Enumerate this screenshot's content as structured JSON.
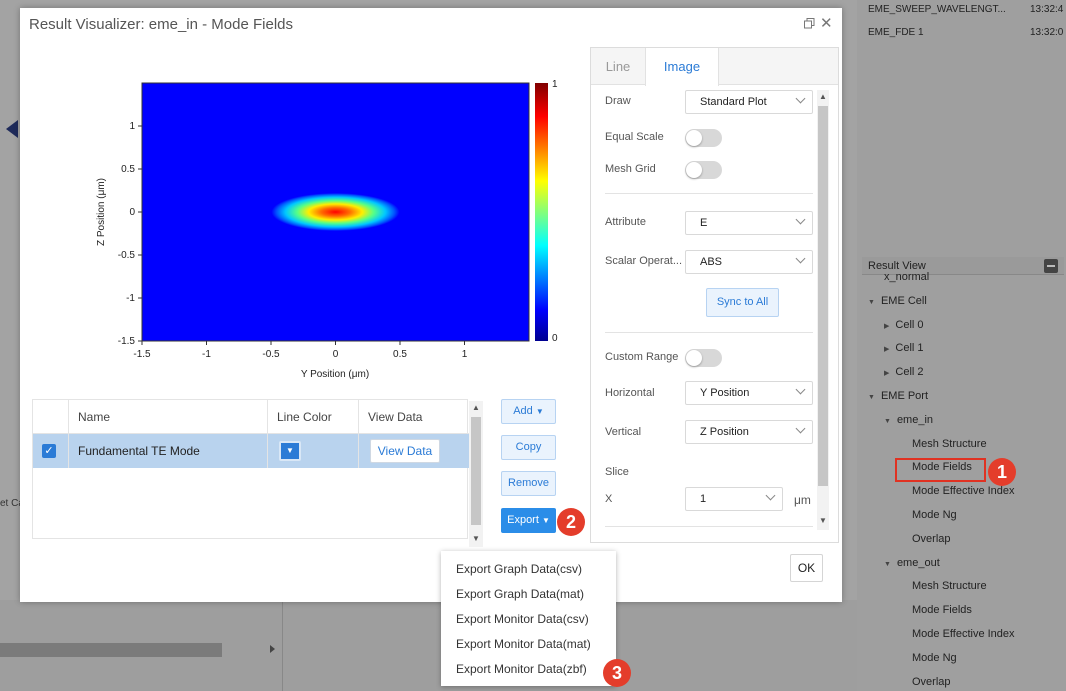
{
  "background": {
    "jobs": [
      {
        "name": "EME_SWEEP_WAVELENGT...",
        "time": "13:32:4"
      },
      {
        "name": "EME_FDE 1",
        "time": "13:32:0"
      }
    ],
    "cut_text": "et Ca",
    "result_view": {
      "title": "Result View",
      "items": [
        {
          "label": "x_normal",
          "level": 1,
          "caret": false
        },
        {
          "label": "EME Cell",
          "level": 0,
          "caret": "down"
        },
        {
          "label": "Cell 0",
          "level": 1,
          "caret": "right"
        },
        {
          "label": "Cell 1",
          "level": 1,
          "caret": "right"
        },
        {
          "label": "Cell 2",
          "level": 1,
          "caret": "right"
        },
        {
          "label": "EME Port",
          "level": 0,
          "caret": "down"
        },
        {
          "label": "eme_in",
          "level": 1,
          "caret": "down"
        },
        {
          "label": "Mesh Structure",
          "level": 2,
          "caret": false
        },
        {
          "label": "Mode Fields",
          "level": 2,
          "caret": false
        },
        {
          "label": "Mode Effective Index",
          "level": 2,
          "caret": false
        },
        {
          "label": "Mode Ng",
          "level": 2,
          "caret": false
        },
        {
          "label": "Overlap",
          "level": 2,
          "caret": false
        },
        {
          "label": "eme_out",
          "level": 1,
          "caret": "down"
        },
        {
          "label": "Mesh Structure",
          "level": 2,
          "caret": false
        },
        {
          "label": "Mode Fields",
          "level": 2,
          "caret": false
        },
        {
          "label": "Mode Effective Index",
          "level": 2,
          "caret": false
        },
        {
          "label": "Mode Ng",
          "level": 2,
          "caret": false
        },
        {
          "label": "Overlap",
          "level": 2,
          "caret": false
        }
      ]
    }
  },
  "dialog": {
    "title": "Result Visualizer: eme_in - Mode Fields",
    "ok_label": "OK"
  },
  "chart_data": {
    "type": "heatmap",
    "xlabel": "Y Position (μm)",
    "ylabel": "Z Position (μm)",
    "xlim": [
      -1.5,
      1.5
    ],
    "ylim": [
      -1.5,
      1.5
    ],
    "x_ticks": [
      "-1.5",
      "-1",
      "-0.5",
      "0",
      "0.5",
      "1"
    ],
    "y_ticks": [
      "1",
      "0.5",
      "0",
      "-0.5",
      "-1",
      "-1.5"
    ],
    "colorbar_min": "0",
    "colorbar_max": "1",
    "peak": {
      "y": 0,
      "z": 0,
      "value": 1
    },
    "colormap": "jet"
  },
  "table": {
    "headers": {
      "name": "Name",
      "line_color": "Line Color",
      "view_data": "View Data"
    },
    "rows": [
      {
        "name": "Fundamental TE Mode",
        "checked": true,
        "color": "#2b7bd6",
        "view_label": "View Data"
      }
    ]
  },
  "buttons": {
    "add": "Add",
    "copy": "Copy",
    "remove": "Remove",
    "export": "Export"
  },
  "badges": [
    "1",
    "2",
    "3"
  ],
  "panel": {
    "tabs": [
      "Line",
      "Image"
    ],
    "active_tab": "Image",
    "draw": {
      "label": "Draw",
      "value": "Standard Plot"
    },
    "equal_scale": {
      "label": "Equal Scale",
      "on": false
    },
    "mesh_grid": {
      "label": "Mesh Grid",
      "on": false
    },
    "attribute": {
      "label": "Attribute",
      "value": "E"
    },
    "scalar_op": {
      "label": "Scalar Operat...",
      "value": "ABS"
    },
    "sync_label": "Sync to All",
    "custom_range": {
      "label": "Custom Range",
      "on": false
    },
    "horizontal": {
      "label": "Horizontal",
      "value": "Y Position"
    },
    "vertical": {
      "label": "Vertical",
      "value": "Z Position"
    },
    "slice_label": "Slice",
    "slice_x": {
      "label": "X",
      "value": "1",
      "unit": "μm"
    }
  },
  "export_menu": [
    "Export Graph Data(csv)",
    "Export Graph Data(mat)",
    "Export Monitor Data(csv)",
    "Export Monitor Data(mat)",
    "Export Monitor Data(zbf)"
  ]
}
